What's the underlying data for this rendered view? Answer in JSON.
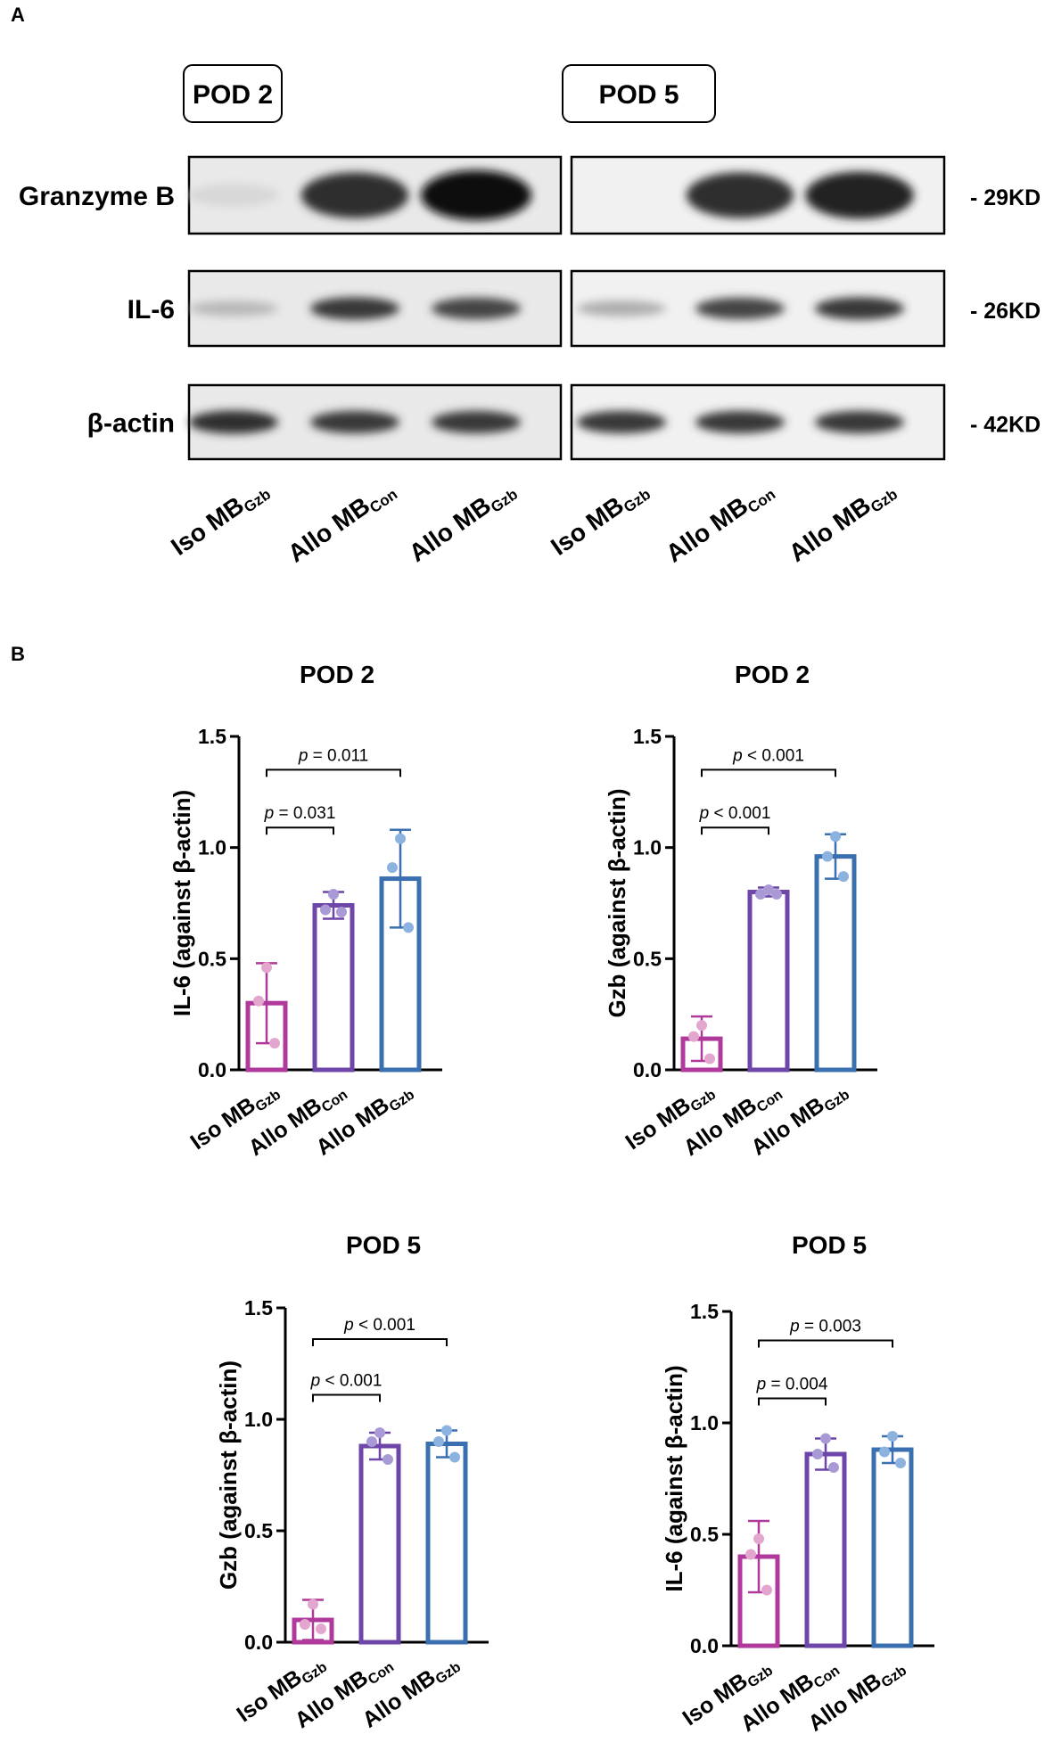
{
  "panel_labels": {
    "a": "A",
    "b": "B"
  },
  "blot": {
    "group_labels": [
      "POD 2",
      "POD 5"
    ],
    "rows": [
      {
        "protein": "Granzyme B",
        "marker": "- 29KD",
        "intensity": {
          "pod2": [
            0.05,
            0.85,
            1.0
          ],
          "pod5": [
            0.0,
            0.85,
            0.9
          ]
        }
      },
      {
        "protein": "IL-6",
        "marker": "- 26KD",
        "intensity": {
          "pod2": [
            0.2,
            0.8,
            0.75
          ],
          "pod5": [
            0.25,
            0.75,
            0.8
          ]
        }
      },
      {
        "protein": "β-actin",
        "marker": "- 42KD",
        "intensity": {
          "pod2": [
            0.85,
            0.8,
            0.8
          ],
          "pod5": [
            0.8,
            0.8,
            0.8
          ]
        }
      }
    ],
    "lanes": [
      {
        "main": "Iso MB",
        "sub": "Gzb"
      },
      {
        "main": "Allo MB",
        "sub": "Con"
      },
      {
        "main": "Allo MB",
        "sub": "Gzb"
      },
      {
        "main": "Iso MB",
        "sub": "Gzb"
      },
      {
        "main": "Allo MB",
        "sub": "Con"
      },
      {
        "main": "Allo MB",
        "sub": "Gzb"
      }
    ]
  },
  "colors": {
    "iso": "#b0399c",
    "allo_con": "#6e45a8",
    "allo_gzb": "#3a6fb0",
    "dot_iso": "#e3a6cf",
    "dot_con": "#a99ad6",
    "dot_gzb": "#8cb2e0"
  },
  "chart_data": [
    {
      "type": "bar",
      "title": "POD 2",
      "ylabel": "IL-6 (against β-actin)",
      "ylim": [
        0,
        1.5
      ],
      "yticks": [
        "0.0",
        "0.5",
        "1.0",
        "1.5"
      ],
      "categories": [
        {
          "main": "Iso MB",
          "sub": "Gzb"
        },
        {
          "main": "Allo MB",
          "sub": "Con"
        },
        {
          "main": "Allo MB",
          "sub": "Gzb"
        }
      ],
      "values": [
        0.3,
        0.74,
        0.86
      ],
      "sd": [
        0.18,
        0.06,
        0.22
      ],
      "points": [
        [
          0.46,
          0.31,
          0.12
        ],
        [
          0.79,
          0.72,
          0.71
        ],
        [
          1.04,
          0.91,
          0.64
        ]
      ],
      "comparisons": [
        {
          "from": 0,
          "to": 1,
          "y": 1.09,
          "label": "p = 0.031"
        },
        {
          "from": 0,
          "to": 2,
          "y": 1.35,
          "label": "p = 0.011"
        }
      ]
    },
    {
      "type": "bar",
      "title": "POD 2",
      "ylabel": "Gzb (against β-actin)",
      "ylim": [
        0,
        1.5
      ],
      "yticks": [
        "0.0",
        "0.5",
        "1.0",
        "1.5"
      ],
      "categories": [
        {
          "main": "Iso MB",
          "sub": "Gzb"
        },
        {
          "main": "Allo MB",
          "sub": "Con"
        },
        {
          "main": "Allo MB",
          "sub": "Gzb"
        }
      ],
      "values": [
        0.14,
        0.8,
        0.96
      ],
      "sd": [
        0.1,
        0.02,
        0.1
      ],
      "points": [
        [
          0.2,
          0.15,
          0.05
        ],
        [
          0.81,
          0.79,
          0.79
        ],
        [
          1.05,
          0.96,
          0.87
        ]
      ],
      "comparisons": [
        {
          "from": 0,
          "to": 1,
          "y": 1.09,
          "label": "p < 0.001"
        },
        {
          "from": 0,
          "to": 2,
          "y": 1.35,
          "label": "p < 0.001"
        }
      ]
    },
    {
      "type": "bar",
      "title": "POD 5",
      "ylabel": "Gzb (against β-actin)",
      "ylim": [
        0,
        1.5
      ],
      "yticks": [
        "0.0",
        "0.5",
        "1.0",
        "1.5"
      ],
      "categories": [
        {
          "main": "Iso MB",
          "sub": "Gzb"
        },
        {
          "main": "Allo MB",
          "sub": "Con"
        },
        {
          "main": "Allo MB",
          "sub": "Gzb"
        }
      ],
      "values": [
        0.1,
        0.88,
        0.89
      ],
      "sd": [
        0.09,
        0.06,
        0.06
      ],
      "points": [
        [
          0.17,
          0.08,
          0.06
        ],
        [
          0.94,
          0.9,
          0.82
        ],
        [
          0.95,
          0.9,
          0.83
        ]
      ],
      "comparisons": [
        {
          "from": 0,
          "to": 1,
          "y": 1.11,
          "label": "p < 0.001"
        },
        {
          "from": 0,
          "to": 2,
          "y": 1.36,
          "label": "p < 0.001"
        }
      ]
    },
    {
      "type": "bar",
      "title": "POD 5",
      "ylabel": "IL-6 (against β-actin)",
      "ylim": [
        0,
        1.5
      ],
      "yticks": [
        "0.0",
        "0.5",
        "1.0",
        "1.5"
      ],
      "categories": [
        {
          "main": "Iso MB",
          "sub": "Gzb"
        },
        {
          "main": "Allo MB",
          "sub": "Con"
        },
        {
          "main": "Allo MB",
          "sub": "Gzb"
        }
      ],
      "values": [
        0.4,
        0.86,
        0.88
      ],
      "sd": [
        0.16,
        0.07,
        0.06
      ],
      "points": [
        [
          0.48,
          0.41,
          0.25
        ],
        [
          0.93,
          0.86,
          0.8
        ],
        [
          0.94,
          0.87,
          0.82
        ]
      ],
      "comparisons": [
        {
          "from": 0,
          "to": 1,
          "y": 1.11,
          "label": "p = 0.004"
        },
        {
          "from": 0,
          "to": 2,
          "y": 1.37,
          "label": "p = 0.003"
        }
      ]
    }
  ]
}
